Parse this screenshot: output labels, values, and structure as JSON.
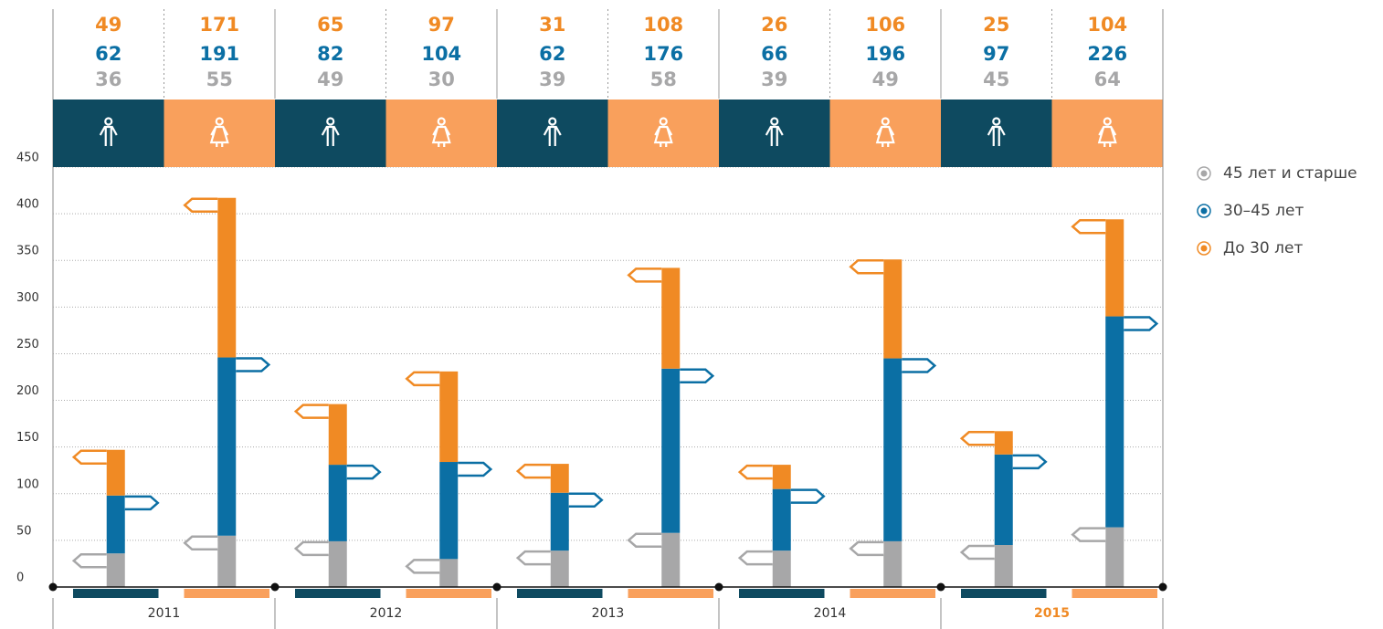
{
  "chart_data": {
    "type": "stacked-bar",
    "groups": [
      "2011",
      "2012",
      "2013",
      "2014",
      "2015"
    ],
    "categories": [
      null,
      null,
      null,
      null,
      null,
      null,
      null,
      null,
      null,
      null
    ],
    "column_colors": [
      "#0e4a60",
      "#f9a05c"
    ],
    "highlight_group": "2015",
    "highlight_color": "#f08a24",
    "series": [
      {
        "name": "45 лет и старше",
        "color": "#a7a7a8",
        "values": [
          36,
          55,
          49,
          30,
          39,
          58,
          39,
          49,
          45,
          64
        ]
      },
      {
        "name": "30–45 лет",
        "color": "#0b6fa4",
        "values": [
          62,
          191,
          82,
          104,
          62,
          176,
          66,
          196,
          97,
          226
        ]
      },
      {
        "name": "До 30 лет",
        "color": "#f08a24",
        "values": [
          49,
          171,
          65,
          97,
          31,
          108,
          26,
          106,
          25,
          104
        ]
      }
    ],
    "ylim": [
      0,
      450
    ],
    "yticks": [
      0,
      50,
      100,
      150,
      200,
      250,
      300,
      350,
      400,
      450
    ],
    "grid": true
  }
}
